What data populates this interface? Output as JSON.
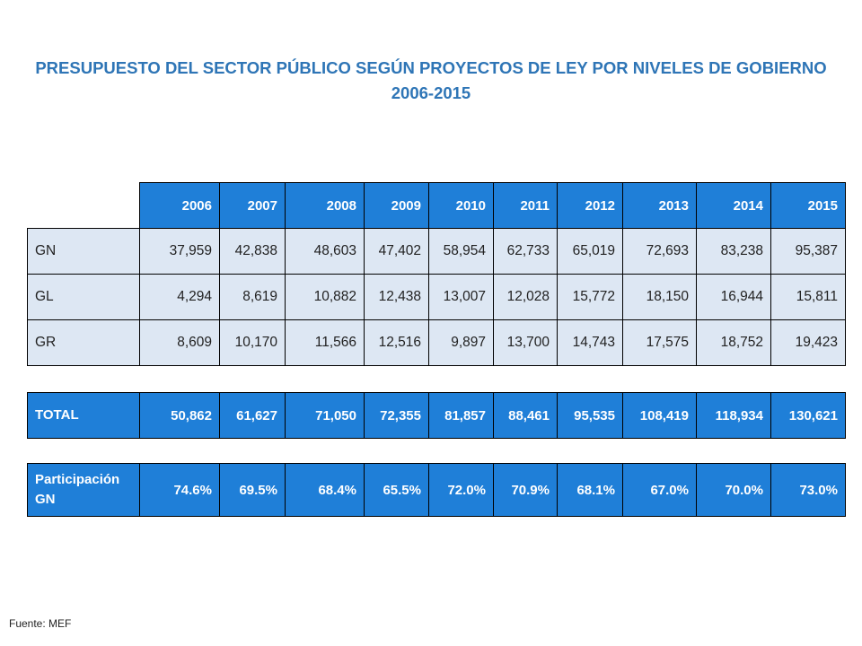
{
  "title": {
    "line1": "PRESUPUESTO DEL SECTOR PÚBLICO SEGÚN PROYECTOS DE LEY POR NIVELES DE GOBIERNO",
    "line2": "2006-2015"
  },
  "years": [
    "2006",
    "2007",
    "2008",
    "2009",
    "2010",
    "2011",
    "2012",
    "2013",
    "2014",
    "2015"
  ],
  "rows": [
    {
      "label": "GN",
      "values": [
        "37,959",
        "42,838",
        "48,603",
        "47,402",
        "58,954",
        "62,733",
        "65,019",
        "72,693",
        "83,238",
        "95,387"
      ]
    },
    {
      "label": "GL",
      "values": [
        "4,294",
        "8,619",
        "10,882",
        "12,438",
        "13,007",
        "12,028",
        "15,772",
        "18,150",
        "16,944",
        "15,811"
      ]
    },
    {
      "label": "GR",
      "values": [
        "8,609",
        "10,170",
        "11,566",
        "12,516",
        "9,897",
        "13,700",
        "14,743",
        "17,575",
        "18,752",
        "19,423"
      ]
    }
  ],
  "total": {
    "label": "TOTAL",
    "values": [
      "50,862",
      "61,627",
      "71,050",
      "72,355",
      "81,857",
      "88,461",
      "95,535",
      "108,419",
      "118,934",
      "130,621"
    ]
  },
  "participation": {
    "label": "Participación GN",
    "values": [
      "74.6%",
      "69.5%",
      "68.4%",
      "65.5%",
      "72.0%",
      "70.9%",
      "68.1%",
      "67.0%",
      "70.0%",
      "73.0%"
    ]
  },
  "source": "Fuente: MEF"
}
